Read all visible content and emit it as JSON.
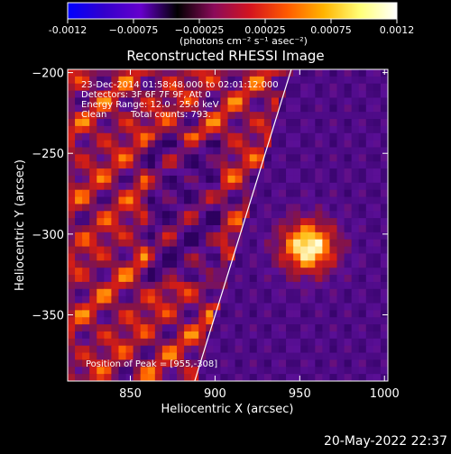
{
  "colorbar": {
    "colors": [
      "#0000ff",
      "#3300cc",
      "#6600cc",
      "#000000",
      "#8b0a5a",
      "#d4141e",
      "#ff5a00",
      "#ffb400",
      "#ffff78",
      "#ffffff"
    ],
    "ticks": [
      "-0.0012",
      "−0.00075",
      "−0.00025",
      "0.00025",
      "0.00075",
      "0.0012"
    ],
    "unit_label": "(photons cm⁻² s⁻¹ asec⁻²)"
  },
  "chart_data": {
    "type": "heatmap",
    "title": "Reconstructed RHESSI Image",
    "xlabel": "Heliocentric X (arcsec)",
    "ylabel": "Heliocentric Y (arcsec)",
    "xlim": [
      813,
      1002
    ],
    "ylim": [
      -391,
      -198
    ],
    "x_ticks": [
      850,
      900,
      950,
      1000
    ],
    "y_ticks": [
      -200,
      -250,
      -300,
      -350
    ],
    "x_tick_labels": [
      "850",
      "900",
      "950",
      "1000"
    ],
    "y_tick_labels": [
      "−200",
      "−250",
      "−300",
      "−350"
    ],
    "limb_line": [
      [
        888,
        -391
      ],
      [
        945,
        -198
      ]
    ],
    "peak": {
      "x": 955,
      "y": -308
    },
    "annotations": [
      "23-Dec-2014 01:58:48.000 to 02:01:12.000",
      "Detectors: 3F 6F 7F 9F, Att 0",
      "Energy Range: 12.0 - 25.0 keV",
      "Clean",
      "Total counts: 793."
    ],
    "peak_label": "Position of Peak = [955,-308]"
  },
  "footer": {
    "date": "20-May-2022 22:37"
  }
}
